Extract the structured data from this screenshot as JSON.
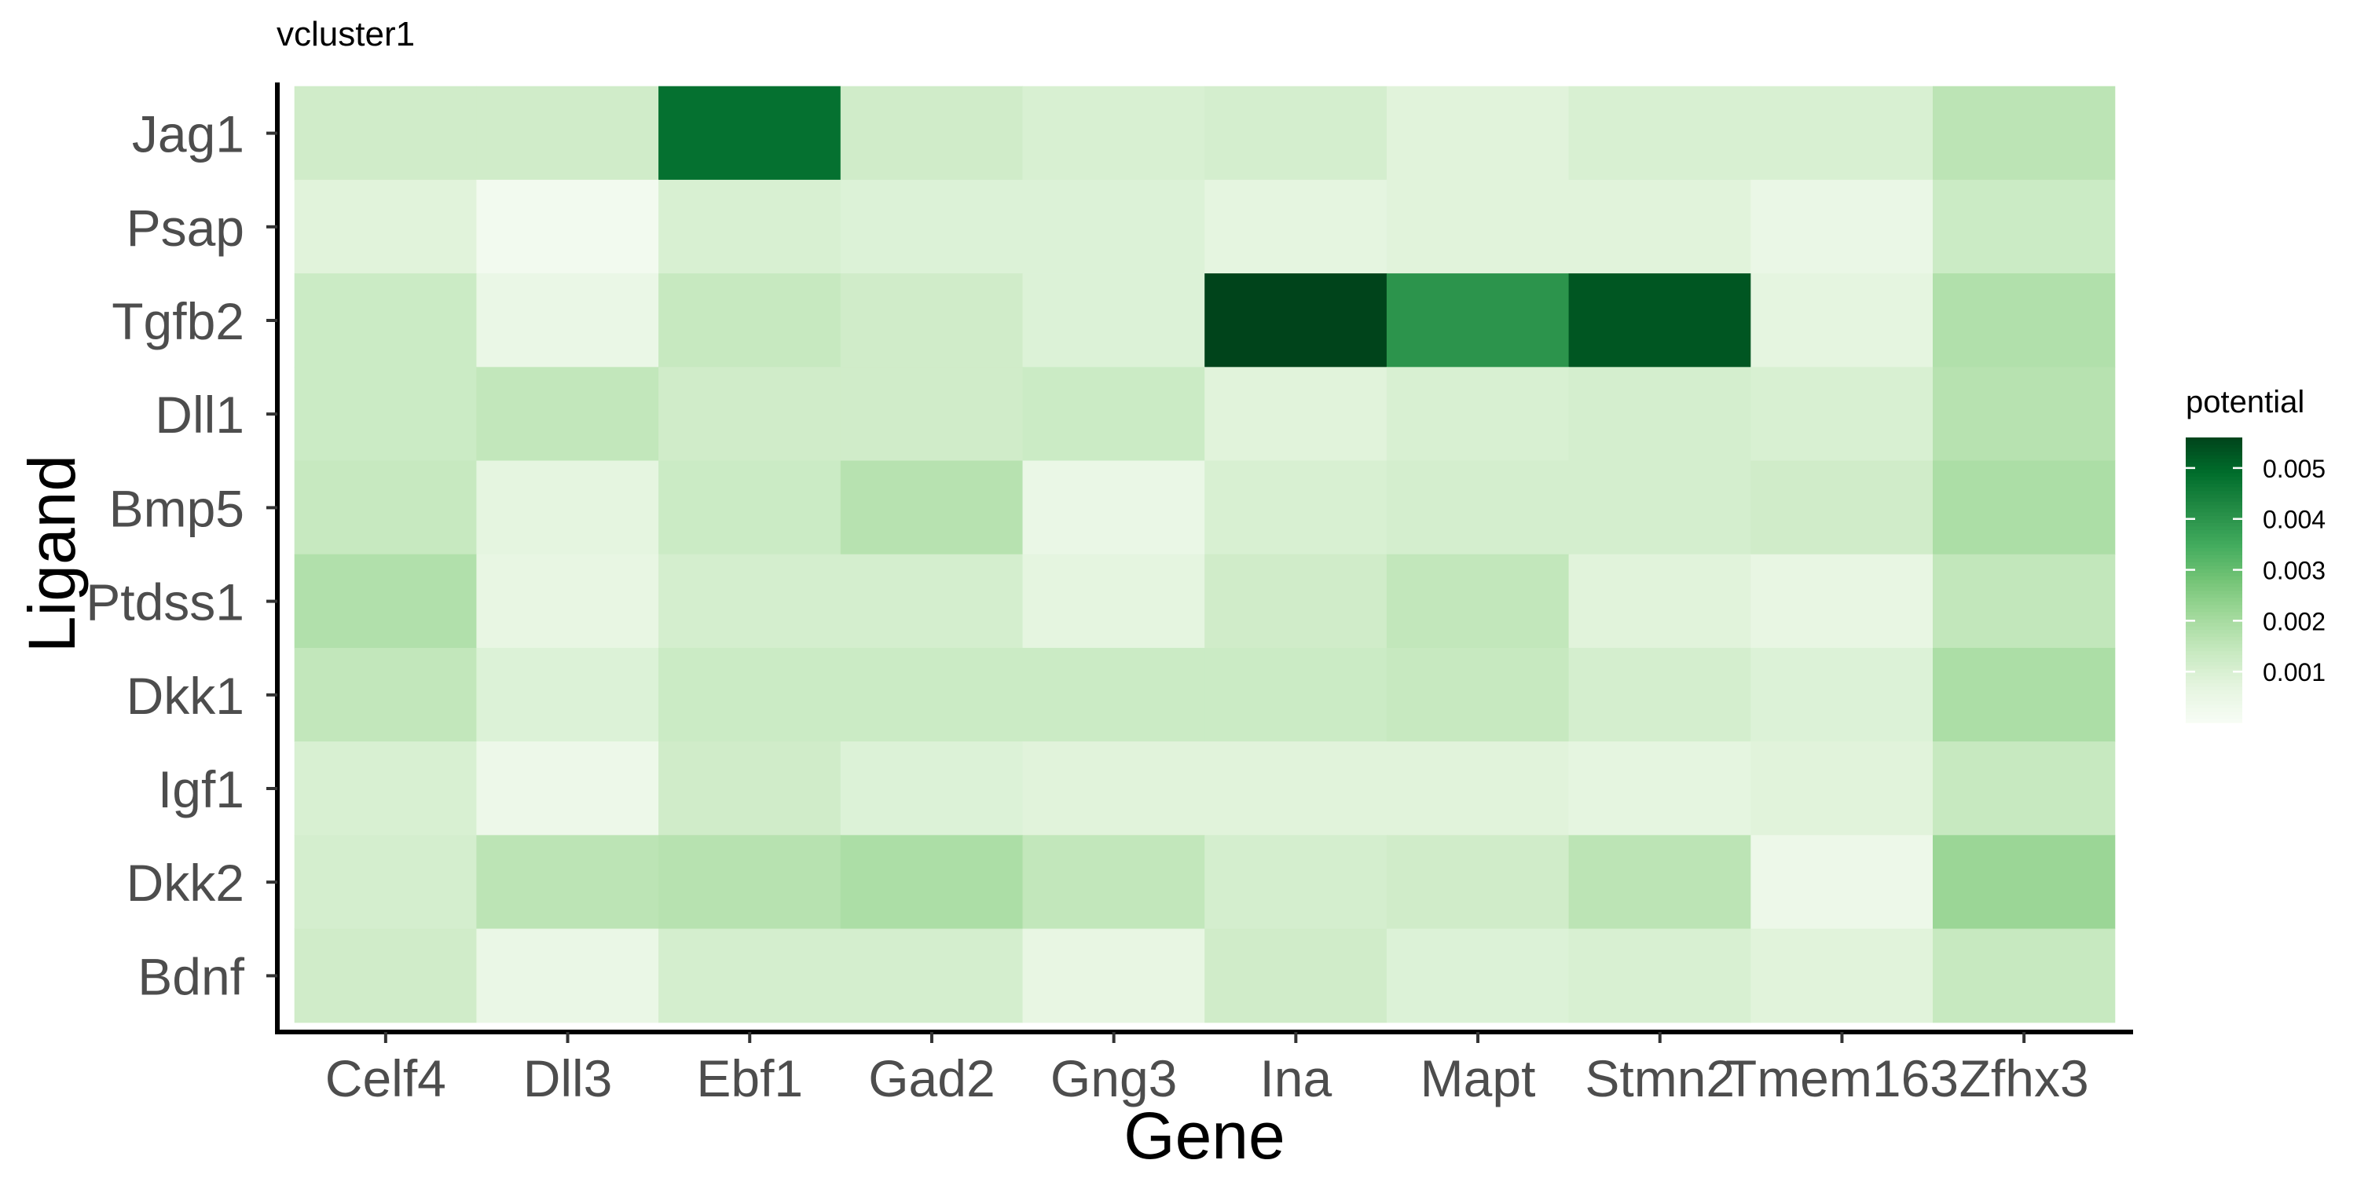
{
  "chart_data": {
    "type": "heatmap",
    "title": "vcluster1",
    "xlabel": "Gene",
    "ylabel": "Ligand",
    "x_categories": [
      "Celf4",
      "Dll3",
      "Ebf1",
      "Gad2",
      "Gng3",
      "Ina",
      "Mapt",
      "Stmn2",
      "Tmem163",
      "Zfhx3"
    ],
    "y_categories": [
      "Jag1",
      "Psap",
      "Tgfb2",
      "Dll1",
      "Bmp5",
      "Ptdss1",
      "Dkk1",
      "Igf1",
      "Dkk2",
      "Bdnf"
    ],
    "values": [
      [
        0.0012,
        0.0012,
        0.0048,
        0.0012,
        0.001,
        0.0011,
        0.0008,
        0.001,
        0.001,
        0.0016
      ],
      [
        0.0008,
        0.0002,
        0.001,
        0.0009,
        0.0009,
        0.0007,
        0.0008,
        0.0008,
        0.0005,
        0.0013
      ],
      [
        0.0013,
        0.0005,
        0.0014,
        0.0012,
        0.0009,
        0.0056,
        0.004,
        0.0053,
        0.0007,
        0.0018
      ],
      [
        0.0013,
        0.0015,
        0.0012,
        0.0012,
        0.0013,
        0.0008,
        0.001,
        0.0011,
        0.001,
        0.0017
      ],
      [
        0.0014,
        0.0007,
        0.0013,
        0.0017,
        0.0005,
        0.001,
        0.0011,
        0.0011,
        0.0012,
        0.0019
      ],
      [
        0.0018,
        0.0006,
        0.0011,
        0.0011,
        0.0007,
        0.0012,
        0.0015,
        0.0008,
        0.0006,
        0.0015
      ],
      [
        0.0015,
        0.0009,
        0.0013,
        0.0013,
        0.0013,
        0.0013,
        0.0014,
        0.0011,
        0.0009,
        0.0019
      ],
      [
        0.001,
        0.0004,
        0.0012,
        0.0009,
        0.0008,
        0.0008,
        0.0008,
        0.0007,
        0.0008,
        0.0014
      ],
      [
        0.0011,
        0.0016,
        0.0017,
        0.0019,
        0.0015,
        0.0011,
        0.0012,
        0.0016,
        0.0004,
        0.0022
      ],
      [
        0.0012,
        0.0005,
        0.0011,
        0.0011,
        0.0006,
        0.0012,
        0.0009,
        0.001,
        0.0008,
        0.0014
      ]
    ],
    "legend": {
      "title": "potential",
      "ticks": [
        0.001,
        0.002,
        0.003,
        0.004,
        0.005
      ],
      "tick_labels": [
        "0.001",
        "0.002",
        "0.003",
        "0.004",
        "0.005"
      ],
      "range": [
        0.0,
        0.0056
      ],
      "placement": "right"
    },
    "colors": [
      "#f7fcf5",
      "#e5f5e0",
      "#c7e9c0",
      "#a1d99b",
      "#74c476",
      "#41ab5d",
      "#238b45",
      "#006d2c",
      "#00441b"
    ],
    "grid": false
  }
}
